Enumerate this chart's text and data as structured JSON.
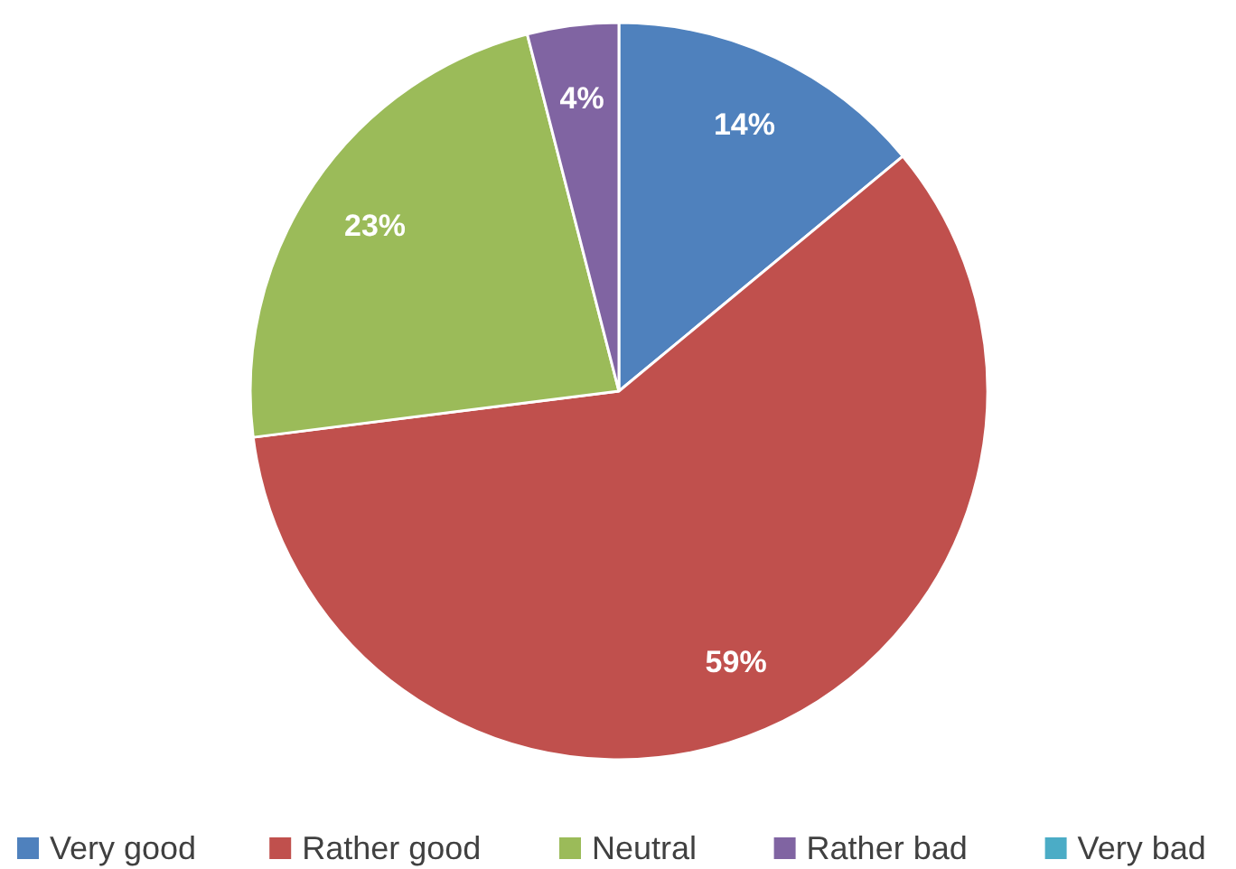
{
  "chart_data": {
    "type": "pie",
    "categories": [
      "Very good",
      "Rather good",
      "Neutral",
      "Rather bad",
      "Very bad"
    ],
    "values": [
      14,
      59,
      23,
      4,
      0
    ],
    "colors": [
      "#4f81bd",
      "#c0504d",
      "#9bbb59",
      "#8064a2",
      "#4bacc6"
    ],
    "value_labels": [
      "14%",
      "59%",
      "23%",
      "4%",
      null
    ],
    "legend": "bottom"
  }
}
